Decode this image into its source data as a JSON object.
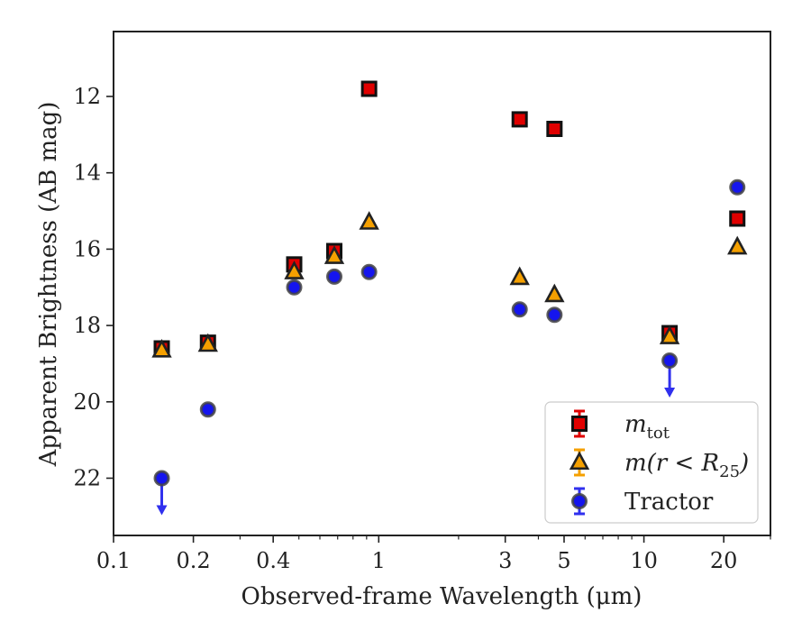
{
  "chart_data": {
    "type": "scatter",
    "xlabel": "Observed-frame Wavelength (μm)",
    "ylabel": "Apparent Brightness (AB mag)",
    "x_scale": "log",
    "xlim": [
      0.1,
      30
    ],
    "ylim": [
      23.5,
      10.3
    ],
    "y_inverted": true,
    "grid": false,
    "legend_position": "bottom-right",
    "x_ticks": [
      {
        "value": 0.1,
        "label": "0.1"
      },
      {
        "value": 0.2,
        "label": "0.2"
      },
      {
        "value": 0.4,
        "label": "0.4"
      },
      {
        "value": 1,
        "label": "1"
      },
      {
        "value": 3,
        "label": "3"
      },
      {
        "value": 5,
        "label": "5"
      },
      {
        "value": 10,
        "label": "10"
      },
      {
        "value": 20,
        "label": "20"
      }
    ],
    "y_ticks": [
      {
        "value": 12,
        "label": "12"
      },
      {
        "value": 14,
        "label": "14"
      },
      {
        "value": 16,
        "label": "16"
      },
      {
        "value": 18,
        "label": "18"
      },
      {
        "value": 20,
        "label": "20"
      },
      {
        "value": 22,
        "label": "22"
      }
    ],
    "series": [
      {
        "key": "mtot",
        "legend_main": "m",
        "legend_sub": "tot",
        "marker": "square",
        "color": "#e00000",
        "errorbar_color": "#e00000",
        "points": [
          {
            "x": 0.152,
            "y": 18.6
          },
          {
            "x": 0.227,
            "y": 18.45
          },
          {
            "x": 0.48,
            "y": 16.4
          },
          {
            "x": 0.68,
            "y": 16.05
          },
          {
            "x": 0.92,
            "y": 11.8
          },
          {
            "x": 3.4,
            "y": 12.6
          },
          {
            "x": 4.6,
            "y": 12.85
          },
          {
            "x": 12.5,
            "y": 18.2
          },
          {
            "x": 22.5,
            "y": 15.2
          }
        ]
      },
      {
        "key": "mr25",
        "legend_main": "m(r < R",
        "legend_sub": "25",
        "legend_suffix": ")",
        "marker": "triangle",
        "color": "#f5a000",
        "errorbar_color": "#f5a000",
        "points": [
          {
            "x": 0.152,
            "y": 18.65
          },
          {
            "x": 0.227,
            "y": 18.5
          },
          {
            "x": 0.48,
            "y": 16.6
          },
          {
            "x": 0.68,
            "y": 16.2
          },
          {
            "x": 0.92,
            "y": 15.3
          },
          {
            "x": 3.4,
            "y": 16.75
          },
          {
            "x": 4.6,
            "y": 17.2
          },
          {
            "x": 12.5,
            "y": 18.3
          },
          {
            "x": 22.5,
            "y": 15.95
          }
        ]
      },
      {
        "key": "tractor",
        "legend_main": "Tractor",
        "marker": "circle",
        "color": "#1515ee",
        "errorbar_color": "#3030ee",
        "points": [
          {
            "x": 0.152,
            "y": 22.0,
            "upper_limit": true
          },
          {
            "x": 0.227,
            "y": 20.2
          },
          {
            "x": 0.48,
            "y": 17.0
          },
          {
            "x": 0.68,
            "y": 16.72
          },
          {
            "x": 0.92,
            "y": 16.6
          },
          {
            "x": 3.4,
            "y": 17.58
          },
          {
            "x": 4.6,
            "y": 17.72
          },
          {
            "x": 12.5,
            "y": 18.92,
            "upper_limit": true
          },
          {
            "x": 22.5,
            "y": 14.38
          }
        ]
      }
    ]
  }
}
